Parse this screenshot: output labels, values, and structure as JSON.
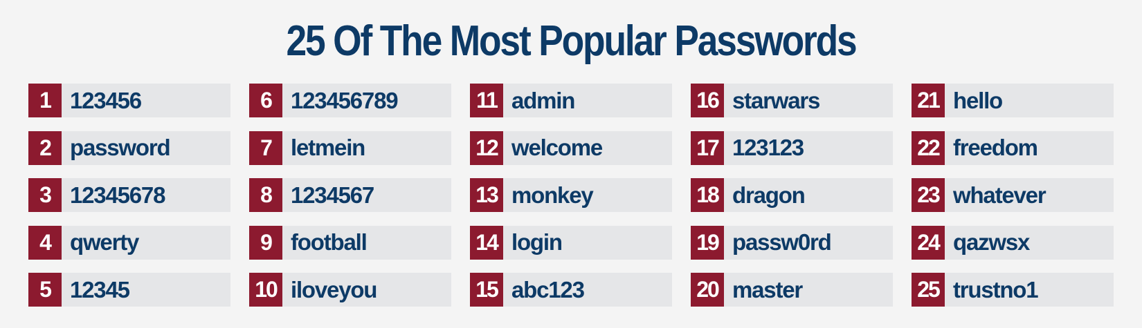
{
  "title": "25 Of The Most Popular Passwords",
  "colors": {
    "background": "#f4f4f4",
    "title": "#0d3a66",
    "rank_badge": "#8c1a2f",
    "row_background": "#e5e6e8"
  },
  "passwords": [
    {
      "rank": "1",
      "password": "123456"
    },
    {
      "rank": "2",
      "password": "password"
    },
    {
      "rank": "3",
      "password": "12345678"
    },
    {
      "rank": "4",
      "password": "qwerty"
    },
    {
      "rank": "5",
      "password": "12345"
    },
    {
      "rank": "6",
      "password": "123456789"
    },
    {
      "rank": "7",
      "password": "letmein"
    },
    {
      "rank": "8",
      "password": "1234567"
    },
    {
      "rank": "9",
      "password": "football"
    },
    {
      "rank": "10",
      "password": "iloveyou"
    },
    {
      "rank": "11",
      "password": "admin"
    },
    {
      "rank": "12",
      "password": "welcome"
    },
    {
      "rank": "13",
      "password": "monkey"
    },
    {
      "rank": "14",
      "password": "login"
    },
    {
      "rank": "15",
      "password": "abc123"
    },
    {
      "rank": "16",
      "password": "starwars"
    },
    {
      "rank": "17",
      "password": "123123"
    },
    {
      "rank": "18",
      "password": "dragon"
    },
    {
      "rank": "19",
      "password": "passw0rd"
    },
    {
      "rank": "20",
      "password": "master"
    },
    {
      "rank": "21",
      "password": "hello"
    },
    {
      "rank": "22",
      "password": "freedom"
    },
    {
      "rank": "23",
      "password": "whatever"
    },
    {
      "rank": "24",
      "password": "qazwsx"
    },
    {
      "rank": "25",
      "password": "trustno1"
    }
  ]
}
